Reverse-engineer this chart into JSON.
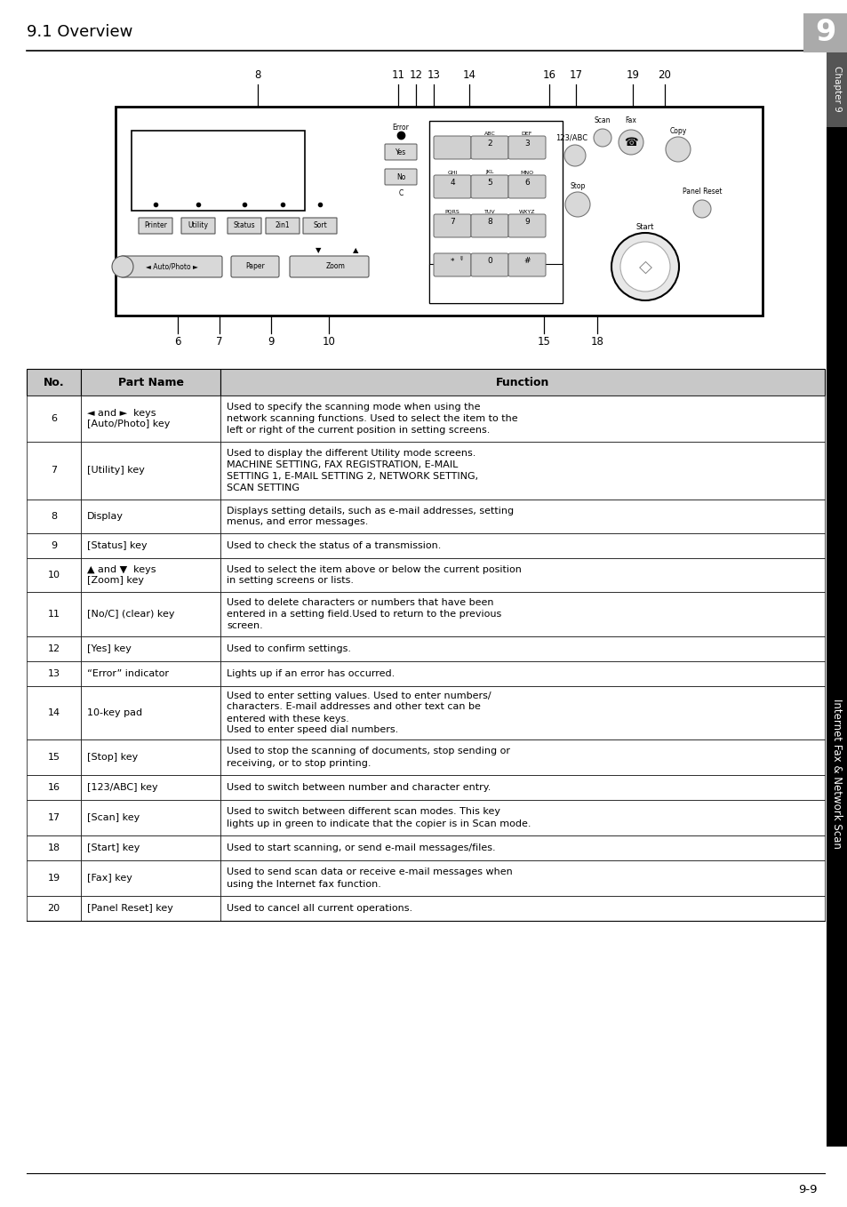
{
  "page_title": "9.1 Overview",
  "chapter_num": "9",
  "page_num": "9-9",
  "sidebar_text": "Internet Fax & Network Scan",
  "chapter_label": "Chapter 9",
  "table_header": [
    "No.",
    "Part Name",
    "Function"
  ],
  "table_rows": [
    [
      "6",
      "◄ and ►  keys\n[Auto/Photo] key",
      "Used to specify the scanning mode when using the\nnetwork scanning functions. Used to select the item to the\nleft or right of the current position in setting screens."
    ],
    [
      "7",
      "[Utility] key",
      "Used to display the different Utility mode screens.\nMACHINE SETTING, FAX REGISTRATION, E-MAIL\nSETTING 1, E-MAIL SETTING 2, NETWORK SETTING,\nSCAN SETTING"
    ],
    [
      "8",
      "Display",
      "Displays setting details, such as e-mail addresses, setting\nmenus, and error messages."
    ],
    [
      "9",
      "[Status] key",
      "Used to check the status of a transmission."
    ],
    [
      "10",
      "▲ and ▼  keys\n[Zoom] key",
      "Used to select the item above or below the current position\nin setting screens or lists."
    ],
    [
      "11",
      "[No/C] (clear) key",
      "Used to delete characters or numbers that have been\nentered in a setting field.Used to return to the previous\nscreen."
    ],
    [
      "12",
      "[Yes] key",
      "Used to confirm settings."
    ],
    [
      "13",
      "“Error” indicator",
      "Lights up if an error has occurred."
    ],
    [
      "14",
      "10-key pad",
      "Used to enter setting values. Used to enter numbers/\ncharacters. E-mail addresses and other text can be\nentered with these keys.\nUsed to enter speed dial numbers."
    ],
    [
      "15",
      "[Stop] key",
      "Used to stop the scanning of documents, stop sending or\nreceiving, or to stop printing."
    ],
    [
      "16",
      "[123/ABC] key",
      "Used to switch between number and character entry."
    ],
    [
      "17",
      "[Scan] key",
      "Used to switch between different scan modes. This key\nlights up in green to indicate that the copier is in Scan mode."
    ],
    [
      "18",
      "[Start] key",
      "Used to start scanning, or send e-mail messages/files."
    ],
    [
      "19",
      "[Fax] key",
      "Used to send scan data or receive e-mail messages when\nusing the Internet fax function."
    ],
    [
      "20",
      "[Panel Reset] key",
      "Used to cancel all current operations."
    ]
  ],
  "header_bg": "#c8c8c8",
  "border_color": "#000000",
  "text_color": "#000000",
  "font_size": 8.0,
  "header_font_size": 9.0,
  "title_font_size": 13,
  "col_ratios": [
    0.068,
    0.175,
    0.757
  ]
}
